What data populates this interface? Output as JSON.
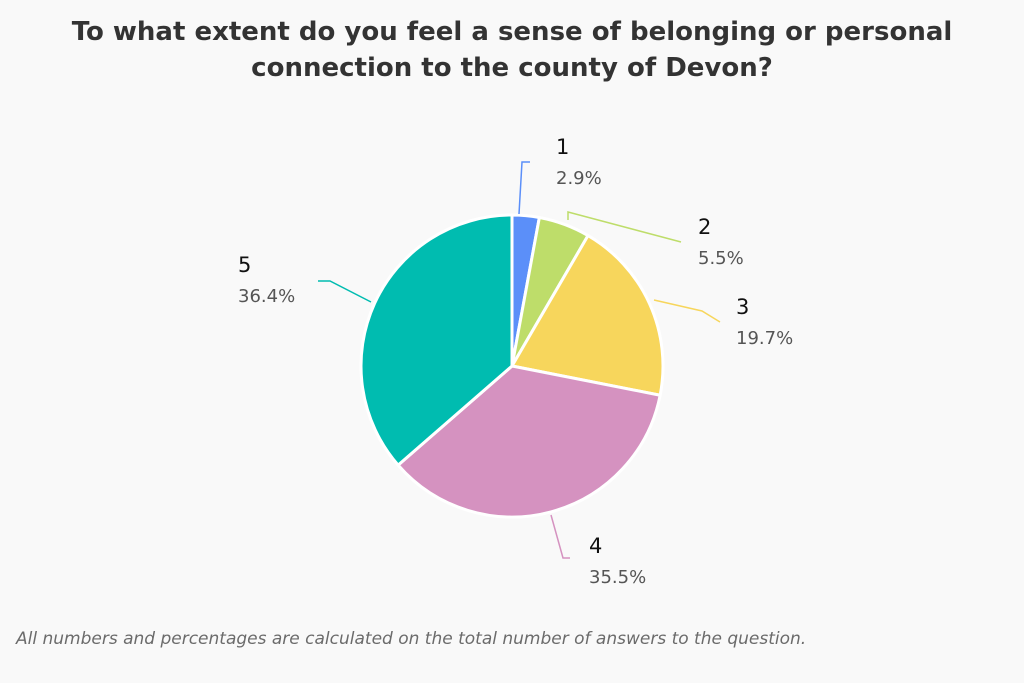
{
  "chart_data": {
    "type": "pie",
    "title_lines": [
      "To what extent do you feel a sense of belonging or personal",
      "connection to the county of Devon?"
    ],
    "categories": [
      "1",
      "2",
      "3",
      "4",
      "5"
    ],
    "values": [
      2.9,
      5.5,
      19.7,
      35.5,
      36.4
    ],
    "labels": [
      "2.9%",
      "5.5%",
      "19.7%",
      "35.5%",
      "36.4%"
    ],
    "colors": [
      "#5b8ff9",
      "#bedd6a",
      "#f7d65c",
      "#d592c0",
      "#00bcb0"
    ],
    "start_angle": "top, clockwise"
  },
  "footnote": "All numbers and percentages are calculated on the total number of answers to the question."
}
